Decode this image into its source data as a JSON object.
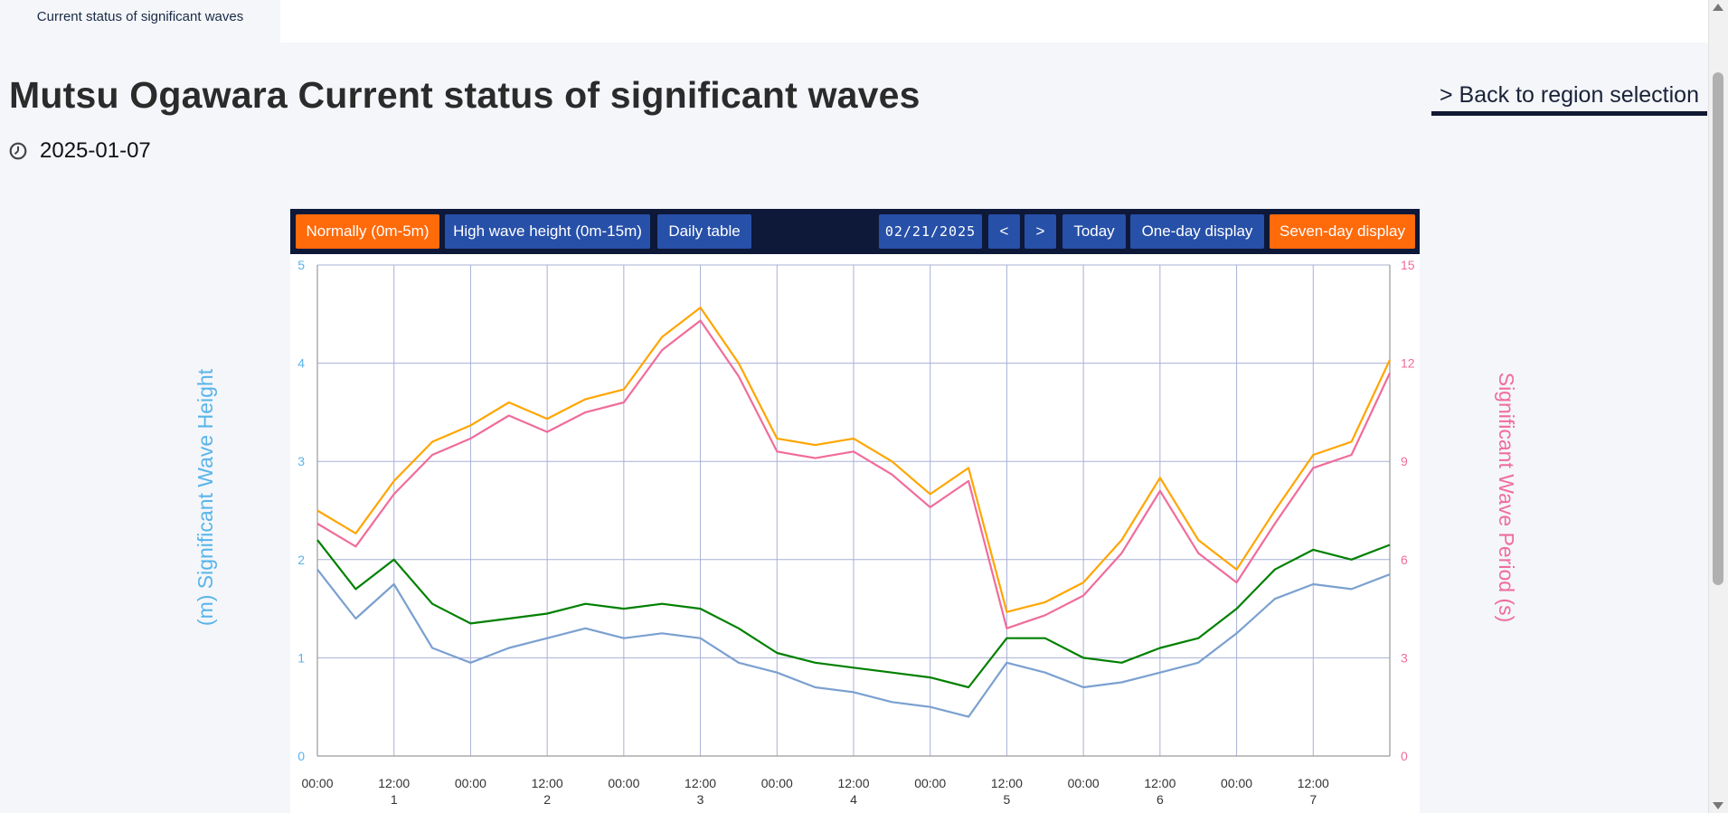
{
  "tab": {
    "label": "Current status of significant waves"
  },
  "page": {
    "title": "Mutsu Ogawara Current status of significant waves",
    "date": "2025-01-07",
    "back_link": "> Back to region selection"
  },
  "toolbar": {
    "normal": "Normally (0m-5m)",
    "high": "High wave height (0m-15m)",
    "daily": "Daily table",
    "date_value": "02/21/2025",
    "prev": "<",
    "next": ">",
    "today": "Today",
    "one_day": "One-day display",
    "seven_day": "Seven-day display"
  },
  "colors": {
    "page_bg": "#f4f6fa",
    "toolbar_bg": "#0e1839",
    "button": "#2750a8",
    "button_active": "#ff6a0b",
    "left_axis": "#58b4ea",
    "right_axis": "#f06c9b",
    "grid": "#a8b0d6"
  },
  "chart_data": {
    "type": "line",
    "ylabel": "(m) Significant Wave Height",
    "y2label": "Significant Wave Period (s)",
    "ylim": [
      0,
      5
    ],
    "y2lim": [
      0,
      15
    ],
    "yticks": [
      "0",
      "1",
      "2",
      "3",
      "4",
      "5"
    ],
    "y2ticks": [
      "0",
      "3",
      "6",
      "9",
      "12",
      "15"
    ],
    "xticks": [
      {
        "time": "00:00",
        "day": ""
      },
      {
        "time": "12:00",
        "day": "1"
      },
      {
        "time": "00:00",
        "day": ""
      },
      {
        "time": "12:00",
        "day": "2"
      },
      {
        "time": "00:00",
        "day": ""
      },
      {
        "time": "12:00",
        "day": "3"
      },
      {
        "time": "00:00",
        "day": ""
      },
      {
        "time": "12:00",
        "day": "4"
      },
      {
        "time": "00:00",
        "day": ""
      },
      {
        "time": "12:00",
        "day": "5"
      },
      {
        "time": "00:00",
        "day": ""
      },
      {
        "time": "12:00",
        "day": "6"
      },
      {
        "time": "00:00",
        "day": ""
      },
      {
        "time": "12:00",
        "day": "7"
      }
    ],
    "x_hours": [
      0,
      6,
      12,
      18,
      24,
      30,
      36,
      42,
      48,
      54,
      60,
      66,
      72,
      78,
      84,
      90,
      96,
      102,
      108,
      114,
      120,
      126,
      132,
      138,
      144,
      150,
      156,
      162,
      168
    ],
    "grid": true,
    "series": [
      {
        "axis": "left",
        "color": "#008000",
        "values": [
          2.2,
          1.7,
          2.0,
          1.55,
          1.35,
          1.4,
          1.45,
          1.55,
          1.5,
          1.55,
          1.5,
          1.3,
          1.05,
          0.95,
          0.9,
          0.85,
          0.8,
          0.7,
          1.2,
          1.2,
          1.0,
          0.95,
          1.1,
          1.2,
          1.5,
          1.9,
          2.1,
          2.0,
          2.15
        ]
      },
      {
        "axis": "left",
        "color": "#7ba0d0",
        "values": [
          1.9,
          1.4,
          1.75,
          1.1,
          0.95,
          1.1,
          1.2,
          1.3,
          1.2,
          1.25,
          1.2,
          0.95,
          0.85,
          0.7,
          0.65,
          0.55,
          0.5,
          0.4,
          0.95,
          0.85,
          0.7,
          0.75,
          0.85,
          0.95,
          1.25,
          1.6,
          1.75,
          1.7,
          1.85
        ]
      },
      {
        "axis": "right",
        "color": "#ffa500",
        "values": [
          7.5,
          6.8,
          8.4,
          9.6,
          10.1,
          10.8,
          10.3,
          10.9,
          11.2,
          12.8,
          13.7,
          12.0,
          9.7,
          9.5,
          9.7,
          9.0,
          8.0,
          8.8,
          4.4,
          4.7,
          5.3,
          6.6,
          8.5,
          6.6,
          5.7,
          7.5,
          9.2,
          9.6,
          12.1
        ]
      },
      {
        "axis": "right",
        "color": "#f06c9b",
        "values": [
          7.1,
          6.4,
          8.0,
          9.2,
          9.7,
          10.4,
          9.9,
          10.5,
          10.8,
          12.4,
          13.3,
          11.6,
          9.3,
          9.1,
          9.3,
          8.6,
          7.6,
          8.4,
          3.9,
          4.3,
          4.9,
          6.2,
          8.1,
          6.2,
          5.3,
          7.1,
          8.8,
          9.2,
          11.7
        ]
      }
    ]
  }
}
